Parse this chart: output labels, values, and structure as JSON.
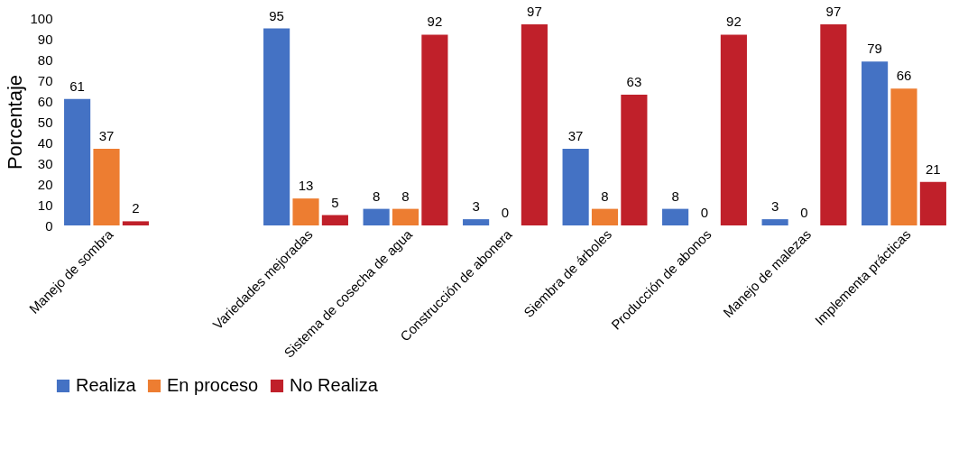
{
  "chart_data": {
    "type": "bar",
    "ylabel": "Porcentaje",
    "categories": [
      "Manejo de sombra",
      null,
      "Variedades mejoradas",
      "Sistema de cosecha de agua",
      "Construcción de abonera",
      "Siembra de árboles",
      "Producción de abonos",
      "Manejo de malezas",
      "Implementa prácticas"
    ],
    "series": [
      {
        "name": "Realiza",
        "color": "#4472c4",
        "values": [
          61,
          null,
          95,
          8,
          3,
          37,
          8,
          3,
          79
        ]
      },
      {
        "name": "En proceso",
        "color": "#ed7d31",
        "values": [
          37,
          null,
          13,
          8,
          0,
          8,
          0,
          0,
          66
        ]
      },
      {
        "name": "No Realiza",
        "color": "#c0202a",
        "values": [
          2,
          null,
          5,
          92,
          97,
          63,
          92,
          97,
          21
        ]
      }
    ],
    "ylim": [
      0,
      100
    ],
    "yticks": [
      0,
      10,
      20,
      30,
      40,
      50,
      60,
      70,
      80,
      90,
      100
    ],
    "grid": false,
    "legend": "bottom",
    "data_labels": true
  }
}
